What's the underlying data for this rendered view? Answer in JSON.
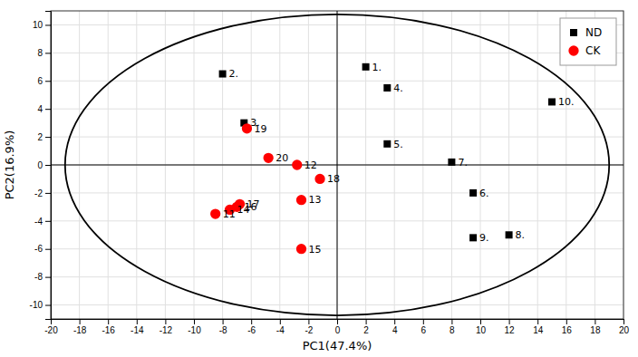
{
  "chart_data": {
    "type": "scatter",
    "xlabel": "PC1(47.4%)",
    "ylabel": "PC2(16.9%)",
    "series": [
      {
        "name": "ND",
        "color": "#000000",
        "marker": "square",
        "x": [
          2.0,
          -8.0,
          3.5,
          3.5,
          9.5,
          8.0,
          12.0,
          9.5,
          15.0,
          -6.5
        ],
        "values": [
          7.0,
          6.5,
          5.5,
          1.5,
          -2.0,
          0.2,
          -5.0,
          -5.2,
          4.5,
          3.0
        ],
        "labels": [
          "1.",
          "2.",
          "4.",
          "5.",
          "6.",
          "7.",
          "8.",
          "9.",
          "10.",
          "3."
        ]
      },
      {
        "name": "CK",
        "color": "#ff0000",
        "marker": "circle",
        "x": [
          -6.3,
          -4.8,
          -2.8,
          -1.2,
          -2.5,
          -2.5,
          -6.8,
          -8.5,
          -7.5,
          -7.0
        ],
        "values": [
          2.6,
          0.5,
          0.0,
          -1.0,
          -2.5,
          -6.0,
          -2.8,
          -3.5,
          -3.2,
          -3.0
        ],
        "labels": [
          "19",
          "20",
          "12",
          "18",
          "13",
          "15",
          "17",
          "11",
          "14",
          "16"
        ]
      }
    ],
    "ellipse": {
      "cx": 0,
      "cy": 0,
      "width": 38,
      "height": 21.5
    },
    "xlim": [
      -20,
      20
    ],
    "ylim": [
      -11,
      11
    ],
    "xticks": [
      -20,
      -18,
      -16,
      -14,
      -12,
      -10,
      -8,
      -6,
      -4,
      -2,
      0,
      2,
      4,
      6,
      8,
      10,
      12,
      14,
      16,
      18,
      20
    ],
    "yticks": [
      -10,
      -8,
      -6,
      -4,
      -2,
      0,
      2,
      4,
      6,
      8,
      10
    ],
    "grid": true,
    "legend": "upper right"
  }
}
